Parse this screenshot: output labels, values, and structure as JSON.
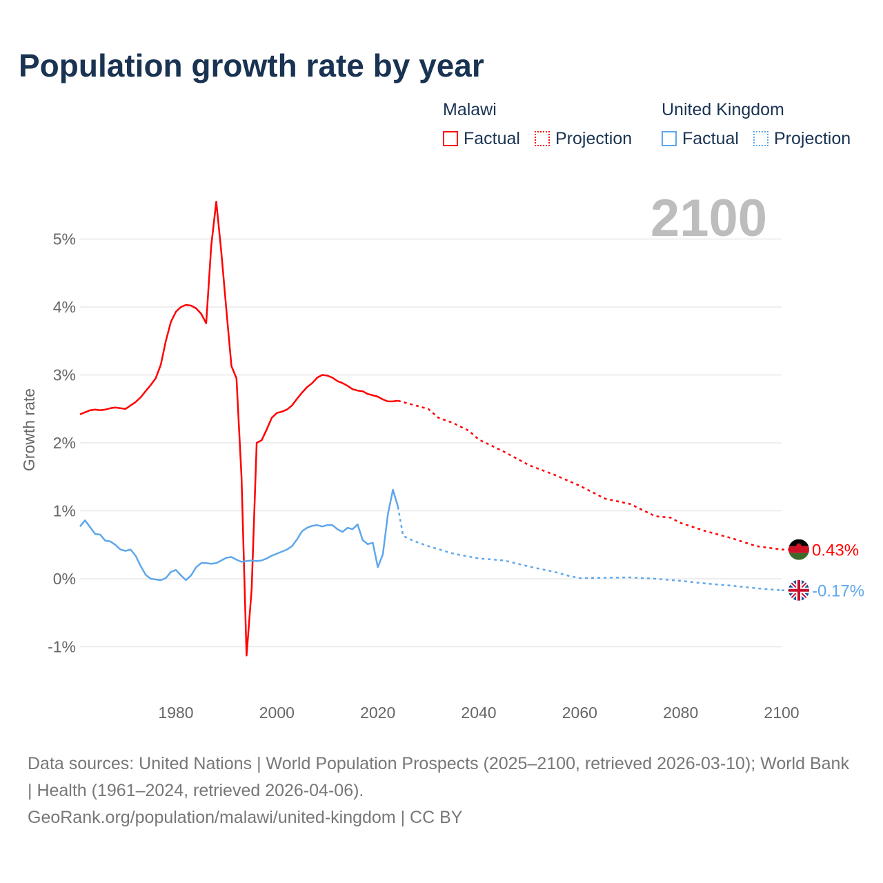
{
  "title": "Population growth rate by year",
  "legend": {
    "groups": [
      {
        "name": "Malawi",
        "factual": "Factual",
        "projection": "Projection",
        "color": "#ff0000"
      },
      {
        "name": "United Kingdom",
        "factual": "Factual",
        "projection": "Projection",
        "color": "#5ea7ec"
      }
    ]
  },
  "sources": [
    "Data sources: United Nations | World Population Prospects (2025–2100, retrieved 2026-03-10); World Bank | Health (1961–2024, retrieved 2026-04-06).",
    "GeoRank.org/population/malawi/united-kingdom | CC BY"
  ],
  "chart_data": {
    "type": "line",
    "title": "Population growth rate by year",
    "ylabel": "Growth rate",
    "xlim": [
      1961,
      2100
    ],
    "ylim": [
      -1.3,
      5.8
    ],
    "x_ticks": [
      1980,
      2000,
      2020,
      2040,
      2060,
      2080,
      2100
    ],
    "y_ticks": [
      -1,
      0,
      1,
      2,
      3,
      4,
      5
    ],
    "y_tick_labels": [
      "-1%",
      "0%",
      "1%",
      "2%",
      "3%",
      "4%",
      "5%"
    ],
    "year_label": "2100",
    "series": [
      {
        "name": "Malawi",
        "kind": "factual",
        "color": "#ff0000",
        "x_start": 1961,
        "values": [
          2.42,
          2.45,
          2.48,
          2.49,
          2.48,
          2.49,
          2.51,
          2.52,
          2.51,
          2.5,
          2.55,
          2.6,
          2.67,
          2.76,
          2.85,
          2.95,
          3.15,
          3.5,
          3.78,
          3.93,
          4.0,
          4.03,
          4.02,
          3.98,
          3.9,
          3.76,
          4.9,
          5.55,
          4.8,
          3.95,
          3.13,
          2.95,
          1.5,
          -1.13,
          -0.15,
          2.0,
          2.04,
          2.2,
          2.37,
          2.44,
          2.46,
          2.49,
          2.55,
          2.65,
          2.74,
          2.82,
          2.88,
          2.96,
          3.0,
          2.99,
          2.96,
          2.91,
          2.88,
          2.84,
          2.79,
          2.77,
          2.76,
          2.72,
          2.7,
          2.68,
          2.64,
          2.61,
          2.61,
          2.62
        ]
      },
      {
        "name": "Malawi",
        "kind": "projection",
        "color": "#ff0000",
        "x": [
          2024,
          2025,
          2030,
          2032,
          2035,
          2038,
          2040,
          2045,
          2050,
          2055,
          2060,
          2065,
          2070,
          2075,
          2078,
          2080,
          2085,
          2090,
          2095,
          2100
        ],
        "values": [
          2.62,
          2.6,
          2.5,
          2.37,
          2.29,
          2.18,
          2.05,
          1.87,
          1.67,
          1.53,
          1.37,
          1.18,
          1.1,
          0.92,
          0.9,
          0.82,
          0.7,
          0.6,
          0.48,
          0.43
        ]
      },
      {
        "name": "United Kingdom",
        "kind": "factual",
        "color": "#5ea7ec",
        "x_start": 1961,
        "values": [
          0.77,
          0.86,
          0.76,
          0.66,
          0.65,
          0.56,
          0.55,
          0.5,
          0.43,
          0.41,
          0.43,
          0.34,
          0.19,
          0.06,
          0.0,
          -0.01,
          -0.02,
          0.01,
          0.1,
          0.13,
          0.05,
          -0.02,
          0.05,
          0.17,
          0.23,
          0.23,
          0.22,
          0.23,
          0.27,
          0.31,
          0.32,
          0.28,
          0.25,
          0.26,
          0.27,
          0.26,
          0.27,
          0.3,
          0.34,
          0.37,
          0.4,
          0.43,
          0.48,
          0.58,
          0.7,
          0.75,
          0.78,
          0.79,
          0.77,
          0.79,
          0.79,
          0.73,
          0.69,
          0.75,
          0.73,
          0.8,
          0.57,
          0.51,
          0.53,
          0.17,
          0.36,
          0.95,
          1.31,
          1.06
        ]
      },
      {
        "name": "United Kingdom",
        "kind": "projection",
        "color": "#5ea7ec",
        "x": [
          2024,
          2025,
          2027,
          2030,
          2035,
          2040,
          2045,
          2050,
          2055,
          2058,
          2060,
          2070,
          2075,
          2080,
          2085,
          2090,
          2095,
          2100
        ],
        "values": [
          1.06,
          0.63,
          0.56,
          0.48,
          0.37,
          0.3,
          0.27,
          0.18,
          0.1,
          0.04,
          0.01,
          0.02,
          0.0,
          -0.03,
          -0.07,
          -0.1,
          -0.14,
          -0.17
        ]
      }
    ],
    "end_labels": [
      {
        "country": "Malawi",
        "text": "0.43%",
        "color": "#ff0000"
      },
      {
        "country": "United Kingdom",
        "text": "-0.17%",
        "color": "#5ea7ec"
      }
    ]
  }
}
